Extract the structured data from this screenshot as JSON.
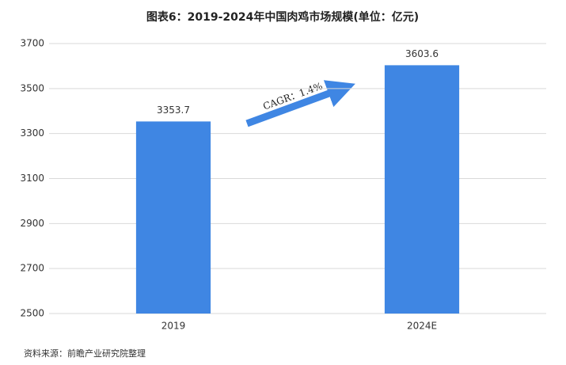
{
  "chart_data": {
    "type": "bar",
    "title": "图表6：2019-2024年中国肉鸡市场规模(单位：亿元)",
    "categories": [
      "2019",
      "2024E"
    ],
    "values": [
      3353.7,
      3603.6
    ],
    "color": "#3f86e3",
    "ylim": [
      2500,
      3700
    ],
    "yticks": [
      2500,
      2700,
      2900,
      3100,
      3300,
      3500,
      3700
    ],
    "grid": true,
    "annotation": "CAGR：1.4%",
    "source": "资料来源：前瞻产业研究院整理"
  }
}
